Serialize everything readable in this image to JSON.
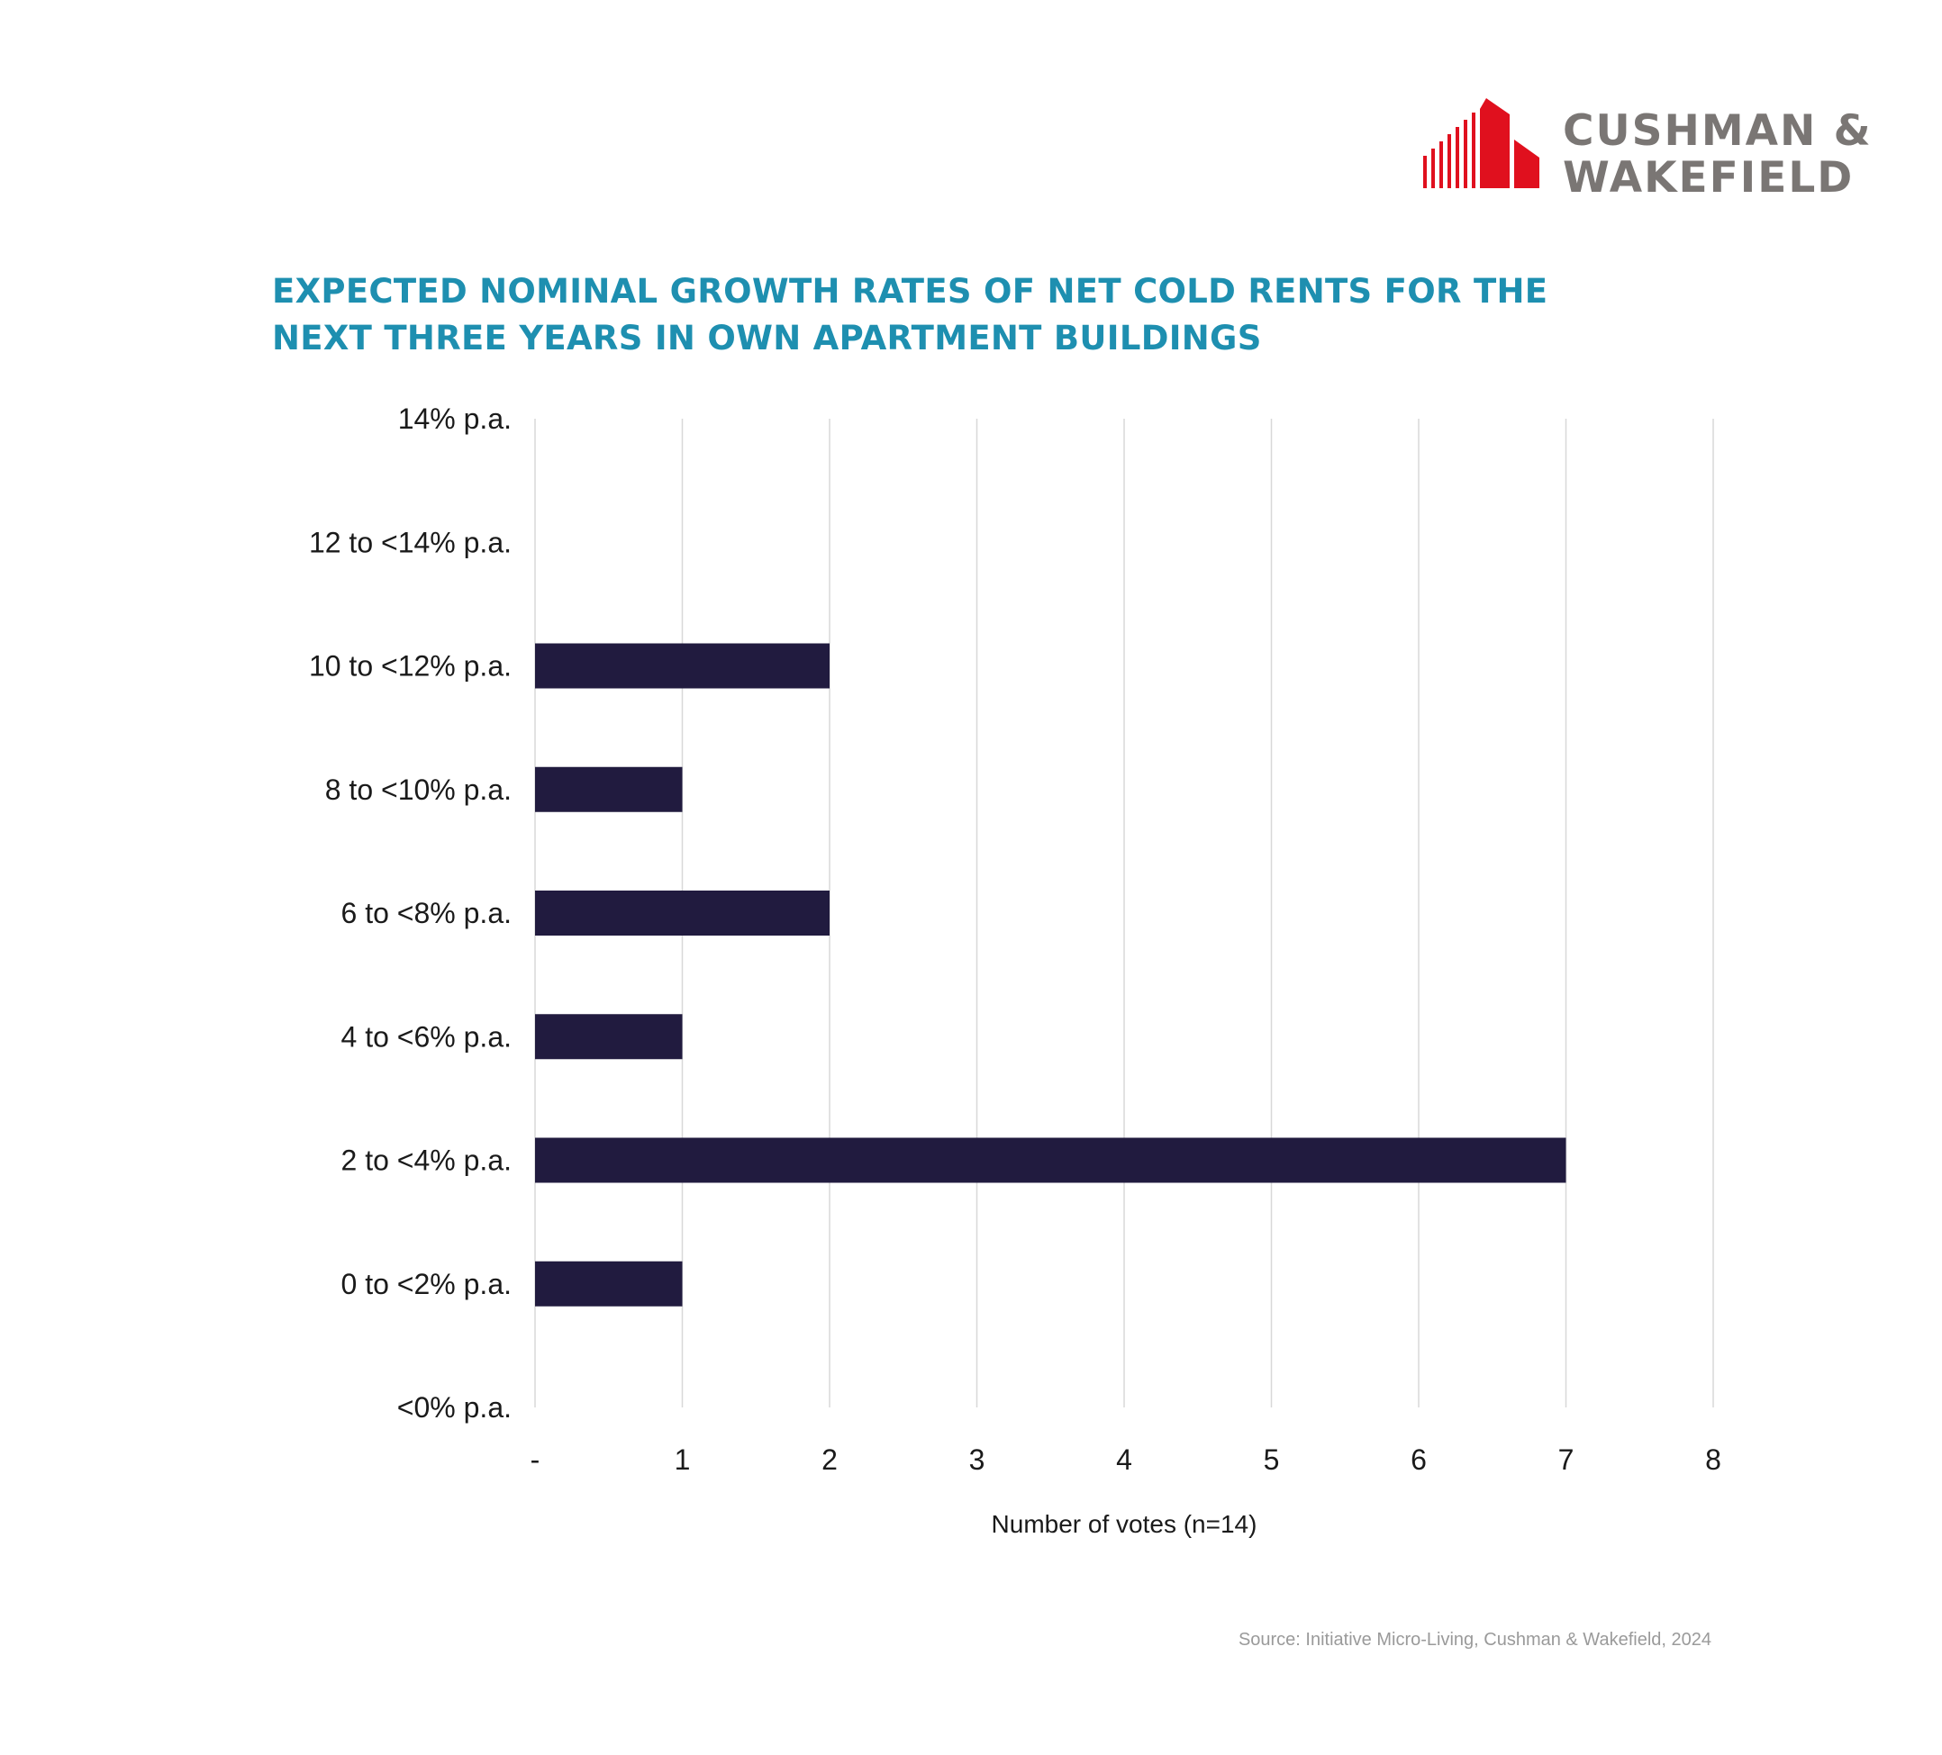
{
  "brand": {
    "logo_line1": "CUSHMAN &",
    "logo_line2": "WAKEFIELD",
    "logo_color": "#e0101e",
    "text_color": "#7a7674"
  },
  "source": "Source: Initiative Micro-Living, Cushman & Wakefield, 2024",
  "colors": {
    "title": "#1e8fb0",
    "bar": "#211b3f",
    "grid": "#d8d8d8",
    "text": "#1a1a1a"
  },
  "chart_data": {
    "type": "bar",
    "orientation": "horizontal",
    "title_lines": [
      "EXPECTED NOMINAL GROWTH RATES OF NET COLD RENTS FOR THE",
      "NEXT THREE YEARS IN OWN APARTMENT BUILDINGS"
    ],
    "xlabel": "Number of votes (n=14)",
    "ylabel": "",
    "categories": [
      "14% p.a.",
      "12 to <14% p.a.",
      "10 to <12% p.a.",
      "8 to <10% p.a.",
      "6 to <8% p.a.",
      "4 to <6% p.a.",
      "2 to <4% p.a.",
      "0 to <2% p.a.",
      "<0% p.a."
    ],
    "values": [
      0,
      0,
      2,
      1,
      2,
      1,
      7,
      1,
      0
    ],
    "xlim": [
      0,
      8
    ],
    "x_ticks": [
      "-",
      "1",
      "2",
      "3",
      "4",
      "5",
      "6",
      "7",
      "8"
    ],
    "grid": "vertical"
  }
}
